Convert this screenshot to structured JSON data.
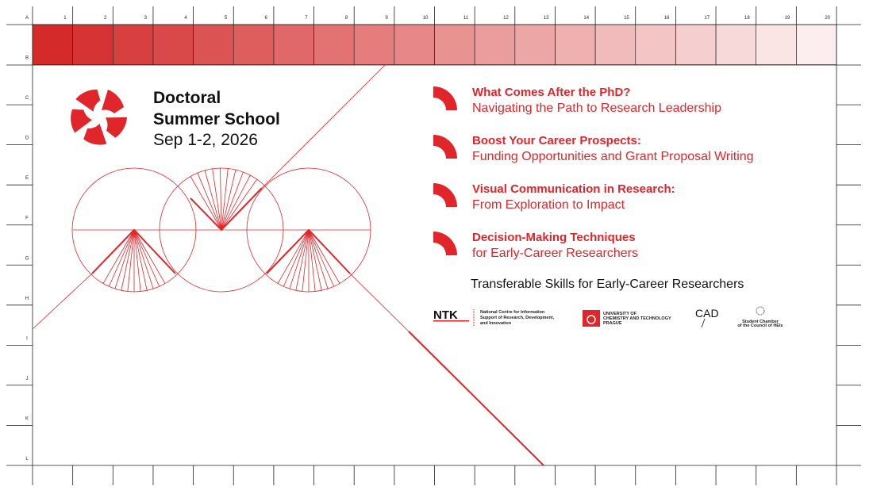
{
  "grid": {
    "columns": [
      "1",
      "2",
      "3",
      "4",
      "5",
      "6",
      "7",
      "8",
      "9",
      "10",
      "11",
      "12",
      "13",
      "14",
      "15",
      "16",
      "17",
      "18",
      "19",
      "20"
    ],
    "rows": [
      "A",
      "B",
      "C",
      "D",
      "E",
      "F",
      "G",
      "H",
      "I",
      "J",
      "K",
      "L"
    ]
  },
  "event": {
    "title_line1": "Doctoral",
    "title_line2": "Summer School",
    "date": "Sep 1-2, 2026"
  },
  "sessions": [
    {
      "title": "What Comes After the PhD?",
      "subtitle": "Navigating the Path to Research Leadership"
    },
    {
      "title": "Boost Your Career Prospects:",
      "subtitle": "Funding Opportunities and Grant Proposal Writing"
    },
    {
      "title": "Visual Communication in Research:",
      "subtitle": "From Exploration to Impact"
    },
    {
      "title": "Decision-Making Techniques",
      "subtitle": "for Early-Career Researchers"
    }
  ],
  "tagline": "Transferable Skills for Early-Career Researchers",
  "partners": {
    "ntk": {
      "name": "NTK",
      "lines": [
        "National Centre for Information",
        "Support of Research, Development,",
        "and Innovation"
      ]
    },
    "uct": {
      "lines": [
        "UNIVERSITY OF",
        "CHEMISTRY AND TECHNOLOGY",
        "PRAGUE"
      ]
    },
    "cad": {
      "name": "CAD"
    },
    "chamber": {
      "lines": [
        "Student Chamber",
        "of the Council of HEIs"
      ]
    }
  }
}
